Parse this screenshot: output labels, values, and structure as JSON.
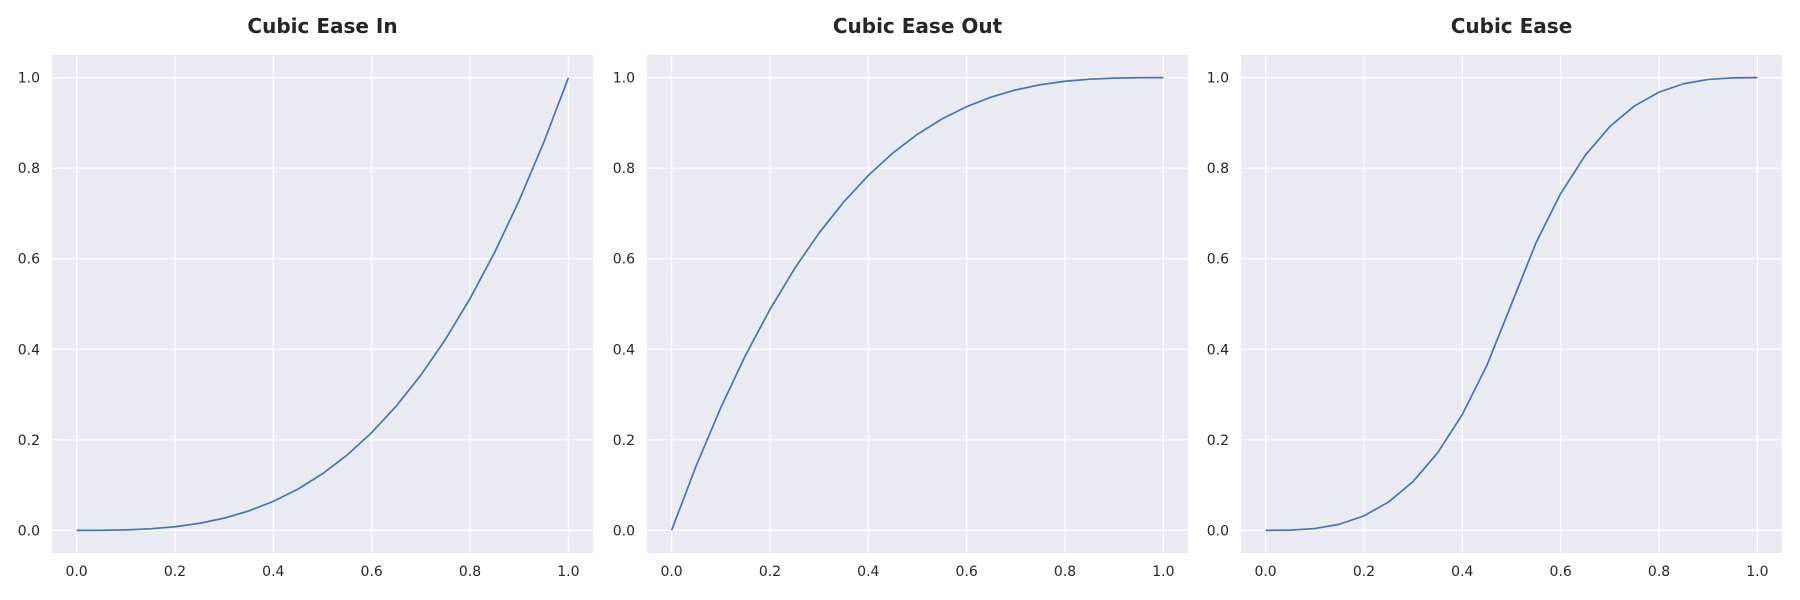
{
  "theme": {
    "plot_background": "#EAEAF2",
    "grid_color": "#FFFFFF",
    "line_color": "#4C72B0",
    "text_color": "#262626"
  },
  "chart_data": [
    {
      "type": "line",
      "title": "Cubic Ease In",
      "xlabel": "",
      "ylabel": "",
      "xlim": [
        -0.05,
        1.05
      ],
      "ylim": [
        -0.05,
        1.05
      ],
      "xticks": [
        0.0,
        0.2,
        0.4,
        0.6,
        0.8,
        1.0
      ],
      "yticks": [
        0.0,
        0.2,
        0.4,
        0.6,
        0.8,
        1.0
      ],
      "xtick_labels": [
        "0.0",
        "0.2",
        "0.4",
        "0.6",
        "0.8",
        "1.0"
      ],
      "ytick_labels": [
        "0.0",
        "0.2",
        "0.4",
        "0.6",
        "0.8",
        "1.0"
      ],
      "grid": true,
      "series": [
        {
          "x": [
            0.0,
            0.05,
            0.1,
            0.15,
            0.2,
            0.25,
            0.3,
            0.35,
            0.4,
            0.45,
            0.5,
            0.55,
            0.6,
            0.65,
            0.7,
            0.75,
            0.8,
            0.85,
            0.9,
            0.95,
            1.0
          ],
          "y": [
            0.0,
            0.0001,
            0.001,
            0.0034,
            0.008,
            0.0156,
            0.027,
            0.0429,
            0.064,
            0.0911,
            0.125,
            0.1664,
            0.216,
            0.2746,
            0.343,
            0.4219,
            0.512,
            0.6141,
            0.729,
            0.8574,
            1.0
          ]
        }
      ]
    },
    {
      "type": "line",
      "title": "Cubic Ease Out",
      "xlabel": "",
      "ylabel": "",
      "xlim": [
        -0.05,
        1.05
      ],
      "ylim": [
        -0.05,
        1.05
      ],
      "xticks": [
        0.0,
        0.2,
        0.4,
        0.6,
        0.8,
        1.0
      ],
      "yticks": [
        0.0,
        0.2,
        0.4,
        0.6,
        0.8,
        1.0
      ],
      "xtick_labels": [
        "0.0",
        "0.2",
        "0.4",
        "0.6",
        "0.8",
        "1.0"
      ],
      "ytick_labels": [
        "0.0",
        "0.2",
        "0.4",
        "0.6",
        "0.8",
        "1.0"
      ],
      "grid": true,
      "series": [
        {
          "x": [
            0.0,
            0.05,
            0.1,
            0.15,
            0.2,
            0.25,
            0.3,
            0.35,
            0.4,
            0.45,
            0.5,
            0.55,
            0.6,
            0.65,
            0.7,
            0.75,
            0.8,
            0.85,
            0.9,
            0.95,
            1.0
          ],
          "y": [
            0.0,
            0.1426,
            0.271,
            0.3859,
            0.488,
            0.5781,
            0.657,
            0.7254,
            0.784,
            0.8336,
            0.875,
            0.9089,
            0.936,
            0.9571,
            0.973,
            0.9844,
            0.992,
            0.9966,
            0.999,
            0.9999,
            1.0
          ]
        }
      ]
    },
    {
      "type": "line",
      "title": "Cubic Ease",
      "xlabel": "",
      "ylabel": "",
      "xlim": [
        -0.05,
        1.05
      ],
      "ylim": [
        -0.05,
        1.05
      ],
      "xticks": [
        0.0,
        0.2,
        0.4,
        0.6,
        0.8,
        1.0
      ],
      "yticks": [
        0.0,
        0.2,
        0.4,
        0.6,
        0.8,
        1.0
      ],
      "xtick_labels": [
        "0.0",
        "0.2",
        "0.4",
        "0.6",
        "0.8",
        "1.0"
      ],
      "ytick_labels": [
        "0.0",
        "0.2",
        "0.4",
        "0.6",
        "0.8",
        "1.0"
      ],
      "grid": true,
      "series": [
        {
          "x": [
            0.0,
            0.05,
            0.1,
            0.15,
            0.2,
            0.25,
            0.3,
            0.35,
            0.4,
            0.45,
            0.5,
            0.55,
            0.6,
            0.65,
            0.7,
            0.75,
            0.8,
            0.85,
            0.9,
            0.95,
            1.0
          ],
          "y": [
            0.0,
            0.0005,
            0.004,
            0.0135,
            0.032,
            0.0625,
            0.108,
            0.1715,
            0.256,
            0.3645,
            0.5,
            0.6355,
            0.744,
            0.8285,
            0.892,
            0.9375,
            0.968,
            0.9865,
            0.996,
            0.9995,
            1.0
          ]
        }
      ]
    }
  ]
}
